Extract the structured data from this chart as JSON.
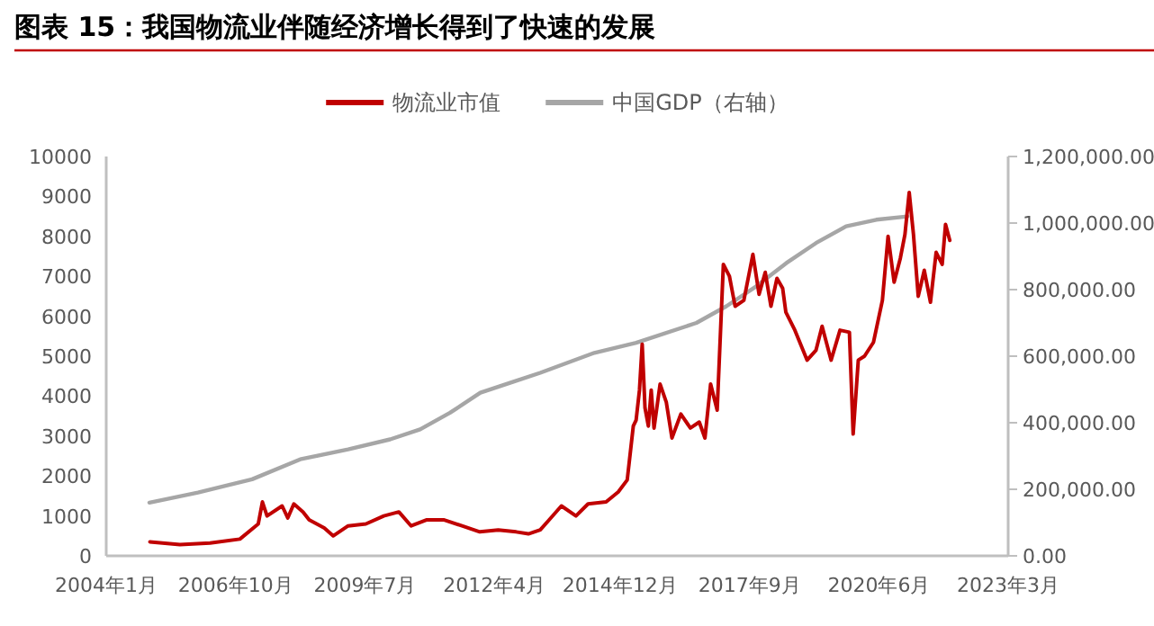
{
  "chart_data": {
    "type": "line",
    "title": "图表 15：我国物流业伴随经济增长得到了快速的发展",
    "legend": "top",
    "grid": false,
    "xlim": [
      "2004-01",
      "2023-03"
    ],
    "xticks": [
      {
        "value": "2004-01",
        "label": "2004年1月"
      },
      {
        "value": "2006-10",
        "label": "2006年10月"
      },
      {
        "value": "2009-07",
        "label": "2009年7月"
      },
      {
        "value": "2012-04",
        "label": "2012年4月"
      },
      {
        "value": "2014-12",
        "label": "2014年12月"
      },
      {
        "value": "2017-09",
        "label": "2017年9月"
      },
      {
        "value": "2020-06",
        "label": "2020年6月"
      },
      {
        "value": "2023-03",
        "label": "2023年3月"
      }
    ],
    "ylim": [
      0,
      10000
    ],
    "yticks": [
      0,
      1000,
      2000,
      3000,
      4000,
      5000,
      6000,
      7000,
      8000,
      9000,
      10000
    ],
    "y2lim": [
      0,
      1200000
    ],
    "y2ticks": [
      {
        "value": 0,
        "label": "0.00"
      },
      {
        "value": 200000,
        "label": "200,000.00"
      },
      {
        "value": 400000,
        "label": "400,000.00"
      },
      {
        "value": 600000,
        "label": "600,000.00"
      },
      {
        "value": 800000,
        "label": "800,000.00"
      },
      {
        "value": 1000000,
        "label": "1,000,000.00"
      },
      {
        "value": 1200000,
        "label": "1,200,000.00"
      }
    ],
    "series": [
      {
        "name": "物流业市值",
        "color": "#c00000",
        "x": [
          "2004-12-05",
          "2005-07-26",
          "2006-03-17",
          "2006-11-03",
          "2007-03-26",
          "2007-04-27",
          "2007-06-02",
          "2007-09-27",
          "2007-11-10",
          "2007-12-27",
          "2008-03-07",
          "2008-04-24",
          "2008-08-19",
          "2008-10-27",
          "2009-02-20",
          "2009-07-08",
          "2009-11-24",
          "2010-03-21",
          "2010-06-24",
          "2010-10-20",
          "2011-03-08",
          "2011-07-24",
          "2011-12-09",
          "2012-04-30",
          "2012-09-16",
          "2012-12-20",
          "2013-03-22",
          "2013-05-30",
          "2013-09-02",
          "2013-12-24",
          "2014-03-28",
          "2014-08-15",
          "2014-11-17",
          "2015-01-26",
          "2015-03-14",
          "2015-04-05",
          "2015-05-01",
          "2015-05-22",
          "2015-06-13",
          "2015-07-09",
          "2015-07-31",
          "2015-08-22",
          "2015-10-08",
          "2015-11-25",
          "2016-01-08",
          "2016-03-17",
          "2016-05-30",
          "2016-08-07",
          "2016-09-20",
          "2016-11-03",
          "2016-12-24",
          "2017-02-10",
          "2017-03-29",
          "2017-05-12",
          "2017-07-19",
          "2017-09-27",
          "2017-11-14",
          "2018-01-01",
          "2018-02-14",
          "2018-04-02",
          "2018-05-16",
          "2018-06-10",
          "2018-08-19",
          "2018-11-22",
          "2019-01-30",
          "2019-03-18",
          "2019-05-27",
          "2019-08-04",
          "2019-10-16",
          "2019-11-14",
          "2019-12-24",
          "2020-02-10",
          "2020-04-20",
          "2020-06-28",
          "2020-08-11",
          "2020-09-27",
          "2020-11-14",
          "2020-12-20",
          "2021-01-22",
          "2021-02-24",
          "2021-04-02",
          "2021-05-19",
          "2021-07-06",
          "2021-08-19",
          "2021-10-05",
          "2021-10-31",
          "2021-12-03"
        ],
        "values": [
          350,
          280,
          320,
          420,
          800,
          1350,
          1000,
          1250,
          950,
          1300,
          1100,
          900,
          700,
          500,
          750,
          800,
          1000,
          1100,
          750,
          900,
          900,
          750,
          600,
          650,
          600,
          550,
          650,
          900,
          1250,
          1000,
          1300,
          1350,
          1600,
          1900,
          3250,
          3400,
          4150,
          5300,
          3700,
          3250,
          4150,
          3200,
          4300,
          3850,
          2950,
          3550,
          3200,
          3350,
          2950,
          4300,
          3650,
          7300,
          7000,
          6250,
          6400,
          7550,
          6550,
          7100,
          6250,
          6950,
          6700,
          6100,
          5650,
          4900,
          5150,
          5750,
          4900,
          5650,
          5600,
          3050,
          4900,
          5000,
          5350,
          6400,
          8000,
          6850,
          7450,
          8050,
          9100,
          8050,
          6500,
          7150,
          6350,
          7600,
          7300,
          8300,
          7900
        ]
      },
      {
        "name": "中国GDP（右轴）",
        "color": "#a6a6a6",
        "axis": "y2",
        "x": [
          "2004-12-01",
          "2005-12-13",
          "2007-02-06",
          "2008-02-14",
          "2009-02-20",
          "2010-01-12",
          "2010-09-02",
          "2011-04-22",
          "2011-12-13",
          "2012-07-31",
          "2013-03-22",
          "2014-05-16",
          "2015-04-05",
          "2016-07-16",
          "2017-03-05",
          "2017-10-23",
          "2018-06-14",
          "2019-01-30",
          "2019-09-20",
          "2020-05-12",
          "2021-01-08"
        ],
        "values": [
          160000,
          190000,
          230000,
          290000,
          320000,
          350000,
          380000,
          430000,
          490000,
          520000,
          550000,
          610000,
          640000,
          700000,
          750000,
          810000,
          880000,
          940000,
          990000,
          1010000,
          1020000
        ]
      }
    ]
  }
}
